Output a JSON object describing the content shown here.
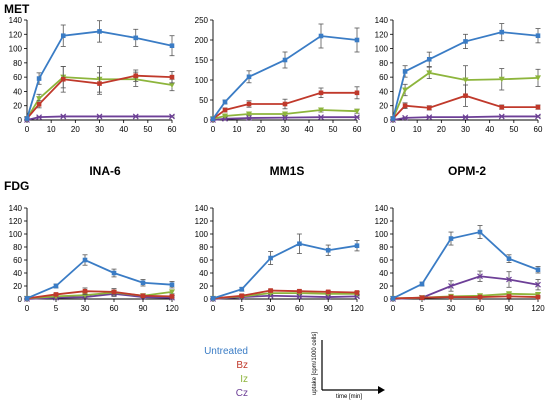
{
  "row_labels": [
    "MET",
    "FDG"
  ],
  "column_titles": [
    "INA-6",
    "MM1S",
    "OPM-2"
  ],
  "colors": {
    "Untreated": "#3a7cc5",
    "Bz": "#c0392b",
    "Iz": "#8db53c",
    "Cz": "#6d3f97"
  },
  "legend": {
    "items": [
      {
        "name": "Untreated",
        "color": "#3a7cc5"
      },
      {
        "name": "Bz",
        "color": "#c0392b"
      },
      {
        "name": "Iz",
        "color": "#8db53c"
      },
      {
        "name": "Cz",
        "color": "#6d3f97"
      }
    ],
    "axis_note_y": "uptake [cpm/1000 cells]",
    "axis_note_x": "time [min]"
  },
  "chart_data": [
    {
      "type": "line",
      "row": "MET",
      "column": "INA-6",
      "x": [
        0,
        5,
        15,
        30,
        45,
        60
      ],
      "xticks": [
        0,
        10,
        20,
        30,
        40,
        50,
        60
      ],
      "xlim": [
        0,
        60
      ],
      "ylim": [
        0,
        140
      ],
      "yticks": [
        0,
        20,
        40,
        60,
        80,
        100,
        120,
        140
      ],
      "grid": false,
      "series": [
        {
          "name": "Untreated",
          "values": [
            2,
            58,
            118,
            124,
            115,
            104
          ],
          "errors": [
            0,
            8,
            15,
            15,
            12,
            14
          ]
        },
        {
          "name": "Bz",
          "values": [
            2,
            22,
            57,
            51,
            62,
            60
          ],
          "errors": [
            0,
            5,
            18,
            15,
            8,
            8
          ]
        },
        {
          "name": "Iz",
          "values": [
            2,
            30,
            60,
            57,
            57,
            49
          ],
          "errors": [
            0,
            6,
            15,
            18,
            10,
            8
          ]
        },
        {
          "name": "Cz",
          "values": [
            0,
            4,
            5,
            5,
            5,
            5
          ],
          "errors": [
            0,
            1,
            1,
            1,
            1,
            1
          ]
        }
      ]
    },
    {
      "type": "line",
      "row": "MET",
      "column": "MM1S",
      "x": [
        0,
        5,
        15,
        30,
        45,
        60
      ],
      "xticks": [
        0,
        10,
        20,
        30,
        40,
        50,
        60
      ],
      "xlim": [
        0,
        60
      ],
      "ylim": [
        0,
        250
      ],
      "yticks": [
        0,
        50,
        100,
        150,
        200,
        250
      ],
      "grid": false,
      "series": [
        {
          "name": "Untreated",
          "values": [
            3,
            45,
            108,
            150,
            210,
            200
          ],
          "errors": [
            0,
            5,
            15,
            20,
            30,
            30
          ]
        },
        {
          "name": "Bz",
          "values": [
            3,
            25,
            40,
            40,
            68,
            68
          ],
          "errors": [
            0,
            5,
            8,
            12,
            12,
            15
          ]
        },
        {
          "name": "Iz",
          "values": [
            3,
            10,
            15,
            15,
            25,
            22
          ],
          "errors": [
            0,
            3,
            4,
            4,
            5,
            5
          ]
        },
        {
          "name": "Cz",
          "values": [
            0,
            3,
            5,
            6,
            7,
            7
          ],
          "errors": [
            0,
            1,
            1,
            1,
            1,
            1
          ]
        }
      ]
    },
    {
      "type": "line",
      "row": "MET",
      "column": "OPM-2",
      "x": [
        0,
        5,
        15,
        30,
        45,
        60
      ],
      "xticks": [
        0,
        10,
        20,
        30,
        40,
        50,
        60
      ],
      "xlim": [
        0,
        60
      ],
      "ylim": [
        0,
        140
      ],
      "yticks": [
        0,
        20,
        40,
        60,
        80,
        100,
        120,
        140
      ],
      "grid": false,
      "series": [
        {
          "name": "Untreated",
          "values": [
            2,
            68,
            85,
            110,
            123,
            118
          ],
          "errors": [
            0,
            8,
            10,
            10,
            12,
            10
          ]
        },
        {
          "name": "Bz",
          "values": [
            2,
            20,
            17,
            34,
            18,
            18
          ],
          "errors": [
            0,
            4,
            3,
            15,
            3,
            3
          ]
        },
        {
          "name": "Iz",
          "values": [
            2,
            42,
            66,
            56,
            57,
            59
          ],
          "errors": [
            0,
            8,
            8,
            20,
            15,
            12
          ]
        },
        {
          "name": "Cz",
          "values": [
            0,
            3,
            4,
            4,
            5,
            5
          ],
          "errors": [
            0,
            1,
            1,
            1,
            1,
            1
          ]
        }
      ]
    },
    {
      "type": "line",
      "row": "FDG",
      "column": "INA-6",
      "x": [
        0,
        5,
        30,
        60,
        90,
        120
      ],
      "xticks": [
        0,
        5,
        30,
        60,
        90,
        120
      ],
      "categorical_x": true,
      "ylim": [
        0,
        140
      ],
      "yticks": [
        0,
        20,
        40,
        60,
        80,
        100,
        120,
        140
      ],
      "grid": false,
      "series": [
        {
          "name": "Untreated",
          "values": [
            1,
            20,
            60,
            40,
            25,
            22
          ],
          "errors": [
            0,
            3,
            8,
            6,
            5,
            5
          ]
        },
        {
          "name": "Bz",
          "values": [
            1,
            7,
            12,
            11,
            5,
            4
          ],
          "errors": [
            0,
            2,
            5,
            5,
            2,
            2
          ]
        },
        {
          "name": "Iz",
          "values": [
            1,
            4,
            6,
            10,
            5,
            11
          ],
          "errors": [
            0,
            2,
            3,
            4,
            2,
            3
          ]
        },
        {
          "name": "Cz",
          "values": [
            0,
            2,
            3,
            8,
            3,
            2
          ],
          "errors": [
            0,
            1,
            2,
            4,
            1,
            1
          ]
        }
      ]
    },
    {
      "type": "line",
      "row": "FDG",
      "column": "MM1S",
      "x": [
        0,
        5,
        30,
        60,
        90,
        120
      ],
      "xticks": [
        0,
        5,
        30,
        60,
        90,
        120
      ],
      "categorical_x": true,
      "ylim": [
        0,
        140
      ],
      "yticks": [
        0,
        20,
        40,
        60,
        80,
        100,
        120,
        140
      ],
      "grid": false,
      "series": [
        {
          "name": "Untreated",
          "values": [
            1,
            15,
            63,
            85,
            75,
            82
          ],
          "errors": [
            0,
            3,
            10,
            15,
            8,
            8
          ]
        },
        {
          "name": "Bz",
          "values": [
            1,
            5,
            13,
            12,
            11,
            10
          ],
          "errors": [
            0,
            1,
            2,
            2,
            2,
            2
          ]
        },
        {
          "name": "Iz",
          "values": [
            1,
            4,
            9,
            9,
            8,
            8
          ],
          "errors": [
            0,
            1,
            2,
            2,
            2,
            2
          ]
        },
        {
          "name": "Cz",
          "values": [
            0,
            3,
            5,
            4,
            3,
            4
          ],
          "errors": [
            0,
            1,
            1,
            1,
            1,
            1
          ]
        }
      ]
    },
    {
      "type": "line",
      "row": "FDG",
      "column": "OPM-2",
      "x": [
        0,
        5,
        30,
        60,
        90,
        120
      ],
      "xticks": [
        0,
        5,
        30,
        60,
        90,
        120
      ],
      "categorical_x": true,
      "ylim": [
        0,
        140
      ],
      "yticks": [
        0,
        20,
        40,
        60,
        80,
        100,
        120,
        140
      ],
      "grid": false,
      "series": [
        {
          "name": "Untreated",
          "values": [
            1,
            23,
            93,
            103,
            62,
            45
          ],
          "errors": [
            0,
            3,
            10,
            10,
            6,
            5
          ]
        },
        {
          "name": "Bz",
          "values": [
            1,
            2,
            3,
            3,
            4,
            3
          ],
          "errors": [
            0,
            1,
            1,
            1,
            1,
            1
          ]
        },
        {
          "name": "Iz",
          "values": [
            1,
            2,
            4,
            5,
            8,
            7
          ],
          "errors": [
            0,
            1,
            1,
            2,
            2,
            2
          ]
        },
        {
          "name": "Cz",
          "values": [
            0,
            2,
            20,
            35,
            30,
            22
          ],
          "errors": [
            0,
            1,
            8,
            8,
            12,
            8
          ]
        }
      ]
    }
  ]
}
